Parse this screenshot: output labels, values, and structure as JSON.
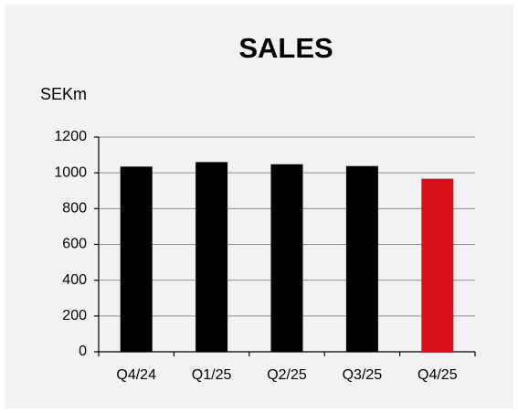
{
  "chart_data": {
    "type": "bar",
    "title": "SALES",
    "y_label": "SEKm",
    "categories": [
      "Q4/24",
      "Q1/25",
      "Q2/25",
      "Q3/25",
      "Q4/25"
    ],
    "values": [
      1035,
      1060,
      1048,
      1038,
      967
    ],
    "colors": [
      "#000000",
      "#000000",
      "#000000",
      "#000000",
      "#d7101a"
    ],
    "ylim": [
      0,
      1200
    ],
    "yticks": [
      0,
      200,
      400,
      600,
      800,
      1000,
      1200
    ],
    "grid": true
  }
}
